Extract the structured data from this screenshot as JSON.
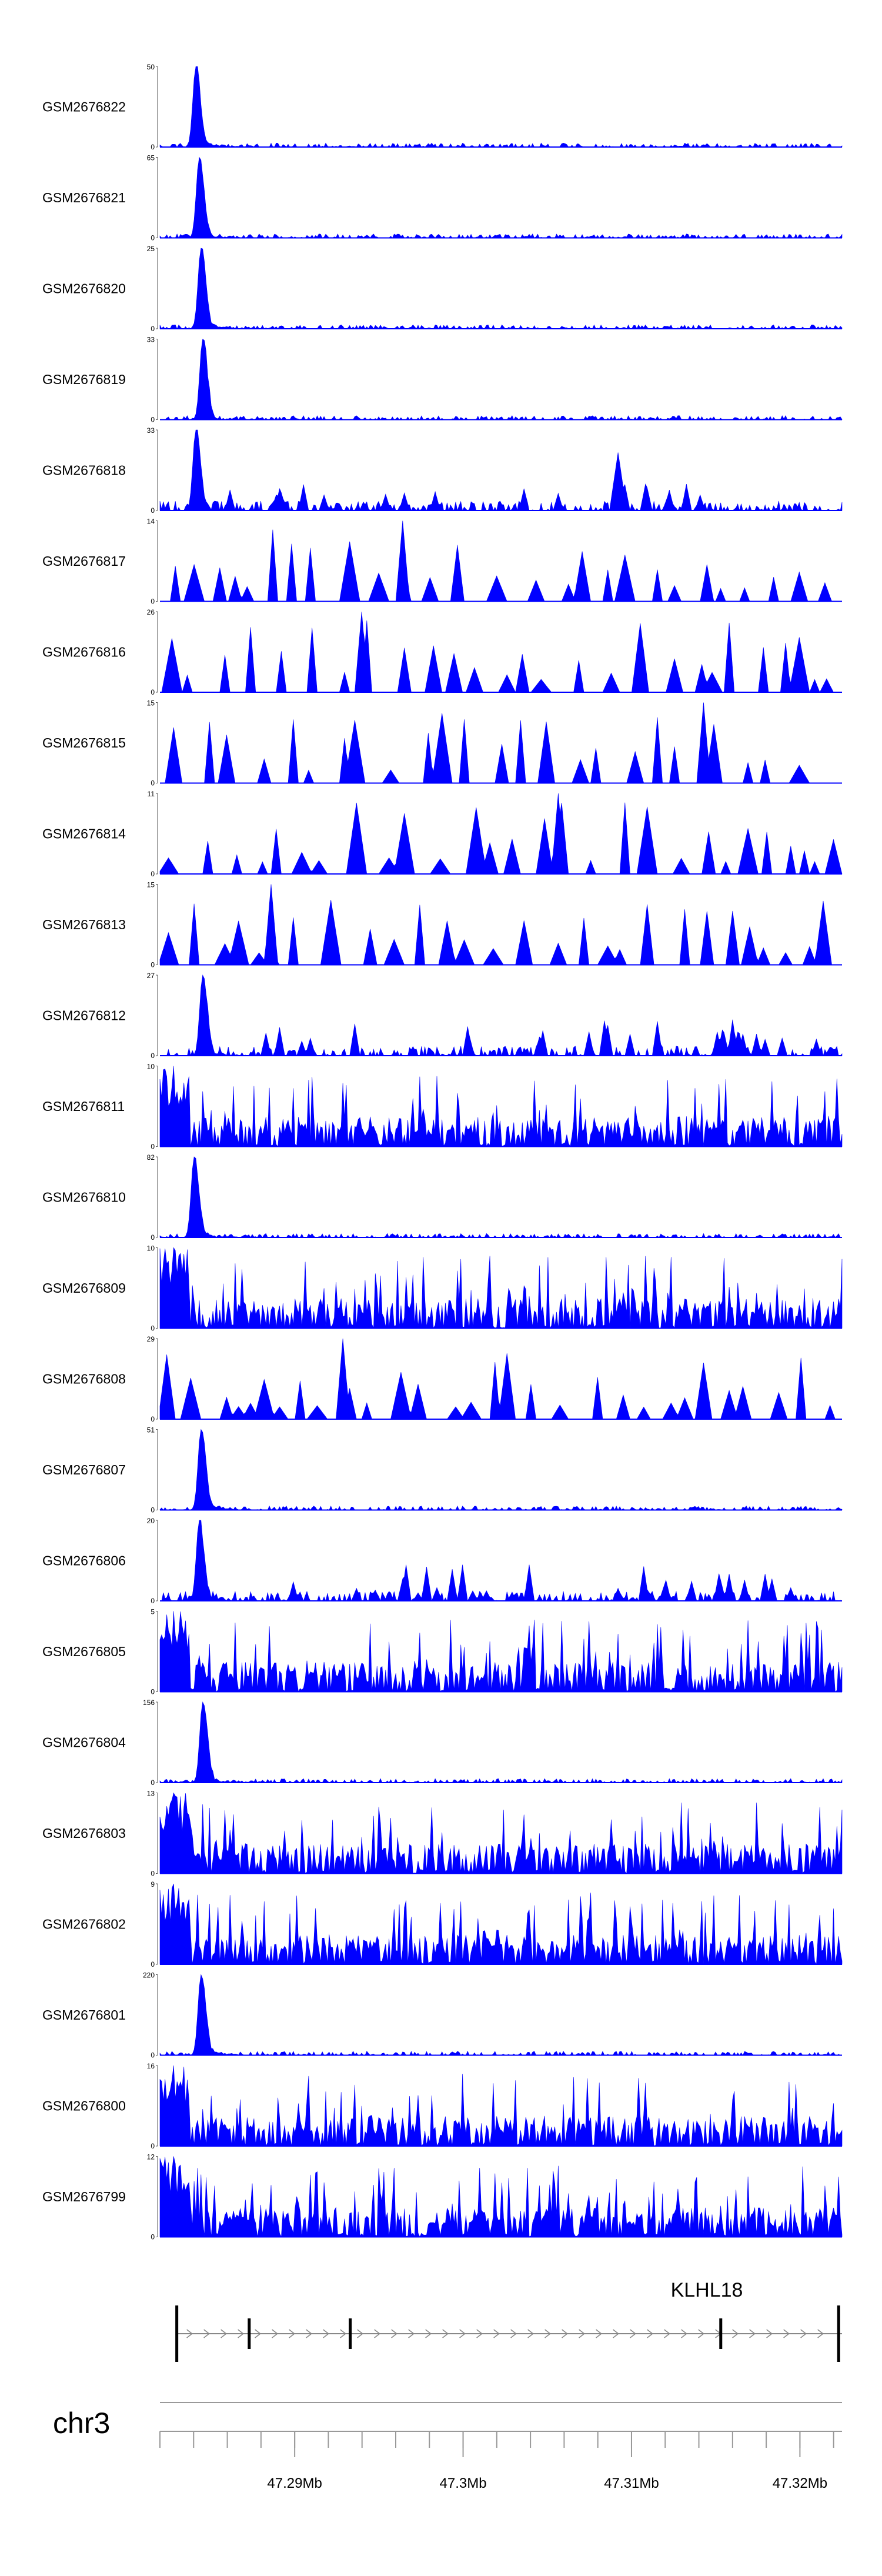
{
  "chart_data": {
    "type": "area",
    "title": "",
    "chromosome": "chr3",
    "x_range_mb": [
      47.282,
      47.3225
    ],
    "fill_color": "#0000ff",
    "tracks": [
      {
        "name": "GSM2676822",
        "ymax": "50",
        "ymin": "0",
        "pattern": "peak",
        "seed": 22
      },
      {
        "name": "GSM2676821",
        "ymax": "65",
        "ymin": "0",
        "pattern": "peak",
        "seed": 21
      },
      {
        "name": "GSM2676820",
        "ymax": "25",
        "ymin": "0",
        "pattern": "peak",
        "seed": 20
      },
      {
        "name": "GSM2676819",
        "ymax": "33",
        "ymin": "0",
        "pattern": "peak",
        "seed": 19
      },
      {
        "name": "GSM2676818",
        "ymax": "33",
        "ymin": "0",
        "pattern": "spikes",
        "seed": 18
      },
      {
        "name": "GSM2676817",
        "ymax": "14",
        "ymin": "0",
        "pattern": "sparse",
        "seed": 17
      },
      {
        "name": "GSM2676816",
        "ymax": "26",
        "ymin": "0",
        "pattern": "sparse",
        "seed": 16
      },
      {
        "name": "GSM2676815",
        "ymax": "15",
        "ymin": "0",
        "pattern": "sparse",
        "seed": 15
      },
      {
        "name": "GSM2676814",
        "ymax": "11",
        "ymin": "0",
        "pattern": "sparse",
        "seed": 14
      },
      {
        "name": "GSM2676813",
        "ymax": "15",
        "ymin": "0",
        "pattern": "sparse",
        "seed": 13
      },
      {
        "name": "GSM2676812",
        "ymax": "27",
        "ymin": "0",
        "pattern": "peak-noisy",
        "seed": 12
      },
      {
        "name": "GSM2676811",
        "ymax": "10",
        "ymin": "0",
        "pattern": "dense",
        "seed": 11
      },
      {
        "name": "GSM2676810",
        "ymax": "82",
        "ymin": "0",
        "pattern": "peak",
        "seed": 10
      },
      {
        "name": "GSM2676809",
        "ymax": "10",
        "ymin": "0",
        "pattern": "dense",
        "seed": 9
      },
      {
        "name": "GSM2676808",
        "ymax": "29",
        "ymin": "0",
        "pattern": "sparse",
        "seed": 8
      },
      {
        "name": "GSM2676807",
        "ymax": "51",
        "ymin": "0",
        "pattern": "peak",
        "seed": 7
      },
      {
        "name": "GSM2676806",
        "ymax": "20",
        "ymin": "0",
        "pattern": "peak-noisy",
        "seed": 6
      },
      {
        "name": "GSM2676805",
        "ymax": "5",
        "ymin": "0",
        "pattern": "dense",
        "seed": 5
      },
      {
        "name": "GSM2676804",
        "ymax": "156",
        "ymin": "0",
        "pattern": "peak",
        "seed": 4
      },
      {
        "name": "GSM2676803",
        "ymax": "13",
        "ymin": "0",
        "pattern": "dense",
        "seed": 3
      },
      {
        "name": "GSM2676802",
        "ymax": "9",
        "ymin": "0",
        "pattern": "dense",
        "seed": 2
      },
      {
        "name": "GSM2676801",
        "ymax": "220",
        "ymin": "0",
        "pattern": "peak",
        "seed": 1
      },
      {
        "name": "GSM2676800",
        "ymax": "16",
        "ymin": "0",
        "pattern": "dense",
        "seed": 99
      },
      {
        "name": "GSM2676799",
        "ymax": "12",
        "ymin": "0",
        "pattern": "dense",
        "seed": 98
      }
    ],
    "gene": {
      "name": "KLHL18",
      "start_mb": 47.283,
      "end_mb": 47.3225,
      "strand": "+",
      "exons_mb": [
        47.283,
        47.2873,
        47.2933,
        47.3153,
        47.3223
      ]
    },
    "x_axis": {
      "ticks_mb": [
        47.282,
        47.284,
        47.286,
        47.288,
        47.29,
        47.292,
        47.294,
        47.296,
        47.298,
        47.3,
        47.302,
        47.304,
        47.306,
        47.308,
        47.31,
        47.312,
        47.314,
        47.316,
        47.318,
        47.32,
        47.322
      ],
      "labeled_ticks": [
        {
          "value": 47.29,
          "label": "47.29Mb"
        },
        {
          "value": 47.3,
          "label": "47.3Mb"
        },
        {
          "value": 47.31,
          "label": "47.31Mb"
        },
        {
          "value": 47.32,
          "label": "47.32Mb"
        }
      ]
    }
  }
}
